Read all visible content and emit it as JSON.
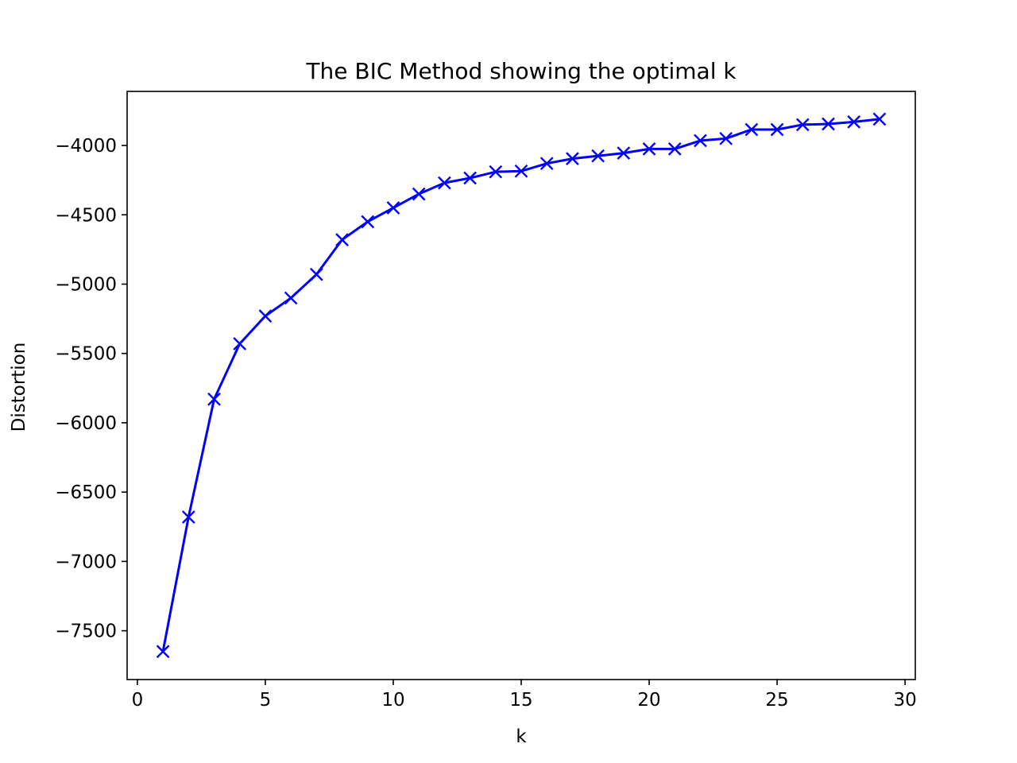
{
  "chart_data": {
    "type": "line",
    "title": "The BIC Method showing the optimal k",
    "xlabel": "k",
    "ylabel": "Distortion",
    "xlim": [
      -0.4,
      30.4
    ],
    "ylim": [
      -7852,
      -3610
    ],
    "xticks": [
      0,
      5,
      10,
      15,
      20,
      25,
      30
    ],
    "yticks": [
      -7500,
      -7000,
      -6500,
      -6000,
      -5500,
      -5000,
      -4500,
      -4000
    ],
    "xtick_labels": [
      "0",
      "5",
      "10",
      "15",
      "20",
      "25",
      "30"
    ],
    "ytick_labels": [
      "−7500",
      "−7000",
      "−6500",
      "−6000",
      "−5500",
      "−5000",
      "−4500",
      "−4000"
    ],
    "grid": false,
    "series": [
      {
        "color": "#0000ff",
        "marker": "x",
        "x": [
          1,
          2,
          3,
          4,
          5,
          6,
          7,
          8,
          9,
          10,
          11,
          12,
          13,
          14,
          15,
          16,
          17,
          18,
          19,
          20,
          21,
          22,
          23,
          24,
          25,
          26,
          27,
          28,
          29
        ],
        "y": [
          -7650,
          -6680,
          -5830,
          -5430,
          -5230,
          -5100,
          -4930,
          -4680,
          -4550,
          -4450,
          -4350,
          -4270,
          -4235,
          -4190,
          -4185,
          -4130,
          -4095,
          -4075,
          -4055,
          -4025,
          -4025,
          -3965,
          -3950,
          -3885,
          -3885,
          -3850,
          -3845,
          -3830,
          -3810
        ]
      }
    ]
  }
}
